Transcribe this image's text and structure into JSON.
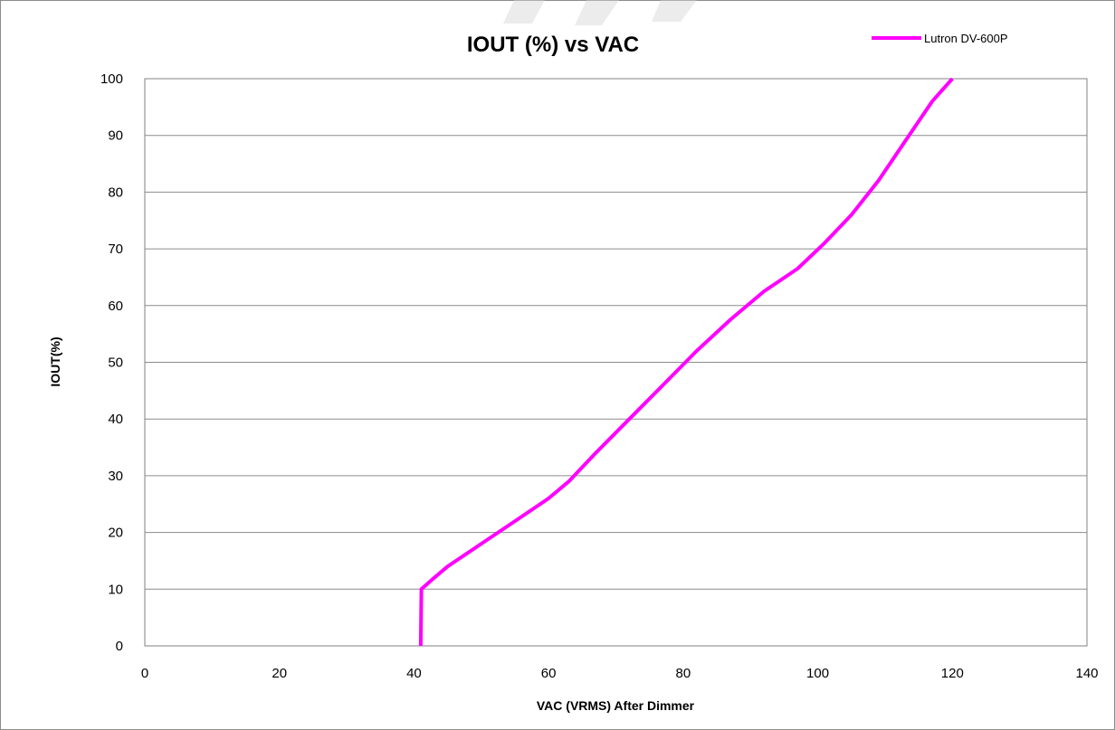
{
  "chart_data": {
    "type": "line",
    "title": "IOUT (%) vs VAC",
    "xlabel": "VAC (VRMS) After Dimmer",
    "ylabel": "IOUT(%)",
    "xlim": [
      0,
      140
    ],
    "ylim": [
      0,
      100
    ],
    "x_ticks": [
      0,
      20,
      40,
      60,
      80,
      100,
      120,
      140
    ],
    "y_ticks": [
      0,
      10,
      20,
      30,
      40,
      50,
      60,
      70,
      80,
      90,
      100
    ],
    "grid": "horizontal",
    "legend_position": "top-right",
    "series": [
      {
        "name": "Lutron DV-600P",
        "color": "#ff00ff",
        "x": [
          41,
          41.1,
          43,
          45,
          50,
          55,
          60,
          63,
          67,
          72,
          77,
          82,
          87,
          92,
          97,
          101,
          105,
          109,
          113,
          117,
          120
        ],
        "y": [
          0,
          10,
          12,
          14,
          18,
          22,
          26,
          29,
          34,
          40,
          46,
          52,
          57.5,
          62.5,
          66.5,
          71,
          76,
          82,
          89,
          96,
          100
        ]
      }
    ]
  }
}
